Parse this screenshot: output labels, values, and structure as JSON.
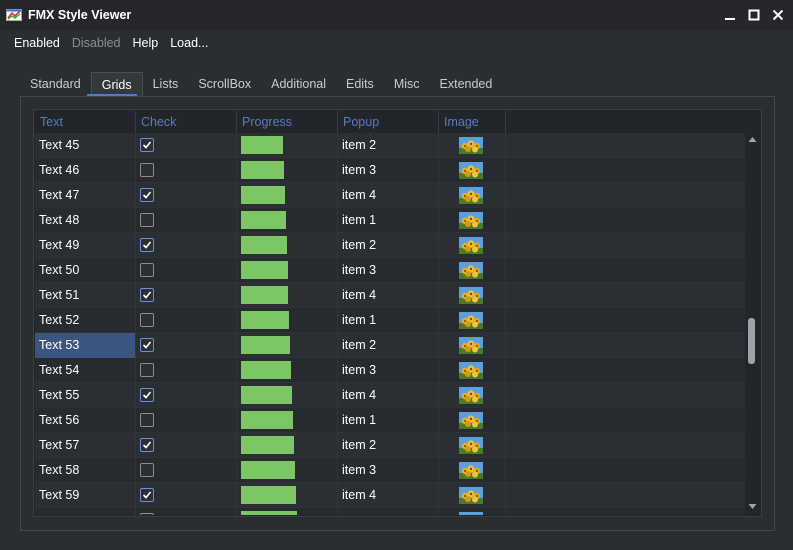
{
  "window": {
    "title": "FMX Style Viewer"
  },
  "menu": {
    "items": [
      {
        "label": "Enabled",
        "disabled": false
      },
      {
        "label": "Disabled",
        "disabled": true
      },
      {
        "label": "Help",
        "disabled": false
      },
      {
        "label": "Load...",
        "disabled": false
      }
    ]
  },
  "tabs": {
    "items": [
      "Standard",
      "Grids",
      "Lists",
      "ScrollBox",
      "Additional",
      "Edits",
      "Misc",
      "Extended"
    ],
    "active": "Grids"
  },
  "grid": {
    "columns": [
      "Text",
      "Check",
      "Progress",
      "Popup",
      "Image"
    ],
    "selected_text": "Text 53",
    "rows": [
      {
        "text": "Text 45",
        "checked": true,
        "progress": 45,
        "popup": "item 2"
      },
      {
        "text": "Text 46",
        "checked": false,
        "progress": 46,
        "popup": "item 3"
      },
      {
        "text": "Text 47",
        "checked": true,
        "progress": 47,
        "popup": "item 4"
      },
      {
        "text": "Text 48",
        "checked": false,
        "progress": 48,
        "popup": "item 1"
      },
      {
        "text": "Text 49",
        "checked": true,
        "progress": 49,
        "popup": "item 2"
      },
      {
        "text": "Text 50",
        "checked": false,
        "progress": 50,
        "popup": "item 3"
      },
      {
        "text": "Text 51",
        "checked": true,
        "progress": 51,
        "popup": "item 4"
      },
      {
        "text": "Text 52",
        "checked": false,
        "progress": 52,
        "popup": "item 1"
      },
      {
        "text": "Text 53",
        "checked": true,
        "progress": 53,
        "popup": "item 2"
      },
      {
        "text": "Text 54",
        "checked": false,
        "progress": 54,
        "popup": "item 3"
      },
      {
        "text": "Text 55",
        "checked": true,
        "progress": 55,
        "popup": "item 4"
      },
      {
        "text": "Text 56",
        "checked": false,
        "progress": 56,
        "popup": "item 1"
      },
      {
        "text": "Text 57",
        "checked": true,
        "progress": 57,
        "popup": "item 2"
      },
      {
        "text": "Text 58",
        "checked": false,
        "progress": 58,
        "popup": "item 3"
      },
      {
        "text": "Text 59",
        "checked": true,
        "progress": 59,
        "popup": "item 4"
      }
    ],
    "partial_next_row": {
      "checked": false,
      "progress": 60
    },
    "image_icon": "flowers-thumbnail-icon",
    "scroll_position": 0.56
  },
  "colors": {
    "accent": "#4b7bd8",
    "header_text": "#5a7bc0",
    "progress_fill": "#7dc665",
    "selection": "#3c5580",
    "checkbox_border_checked": "#6d8fd6"
  }
}
